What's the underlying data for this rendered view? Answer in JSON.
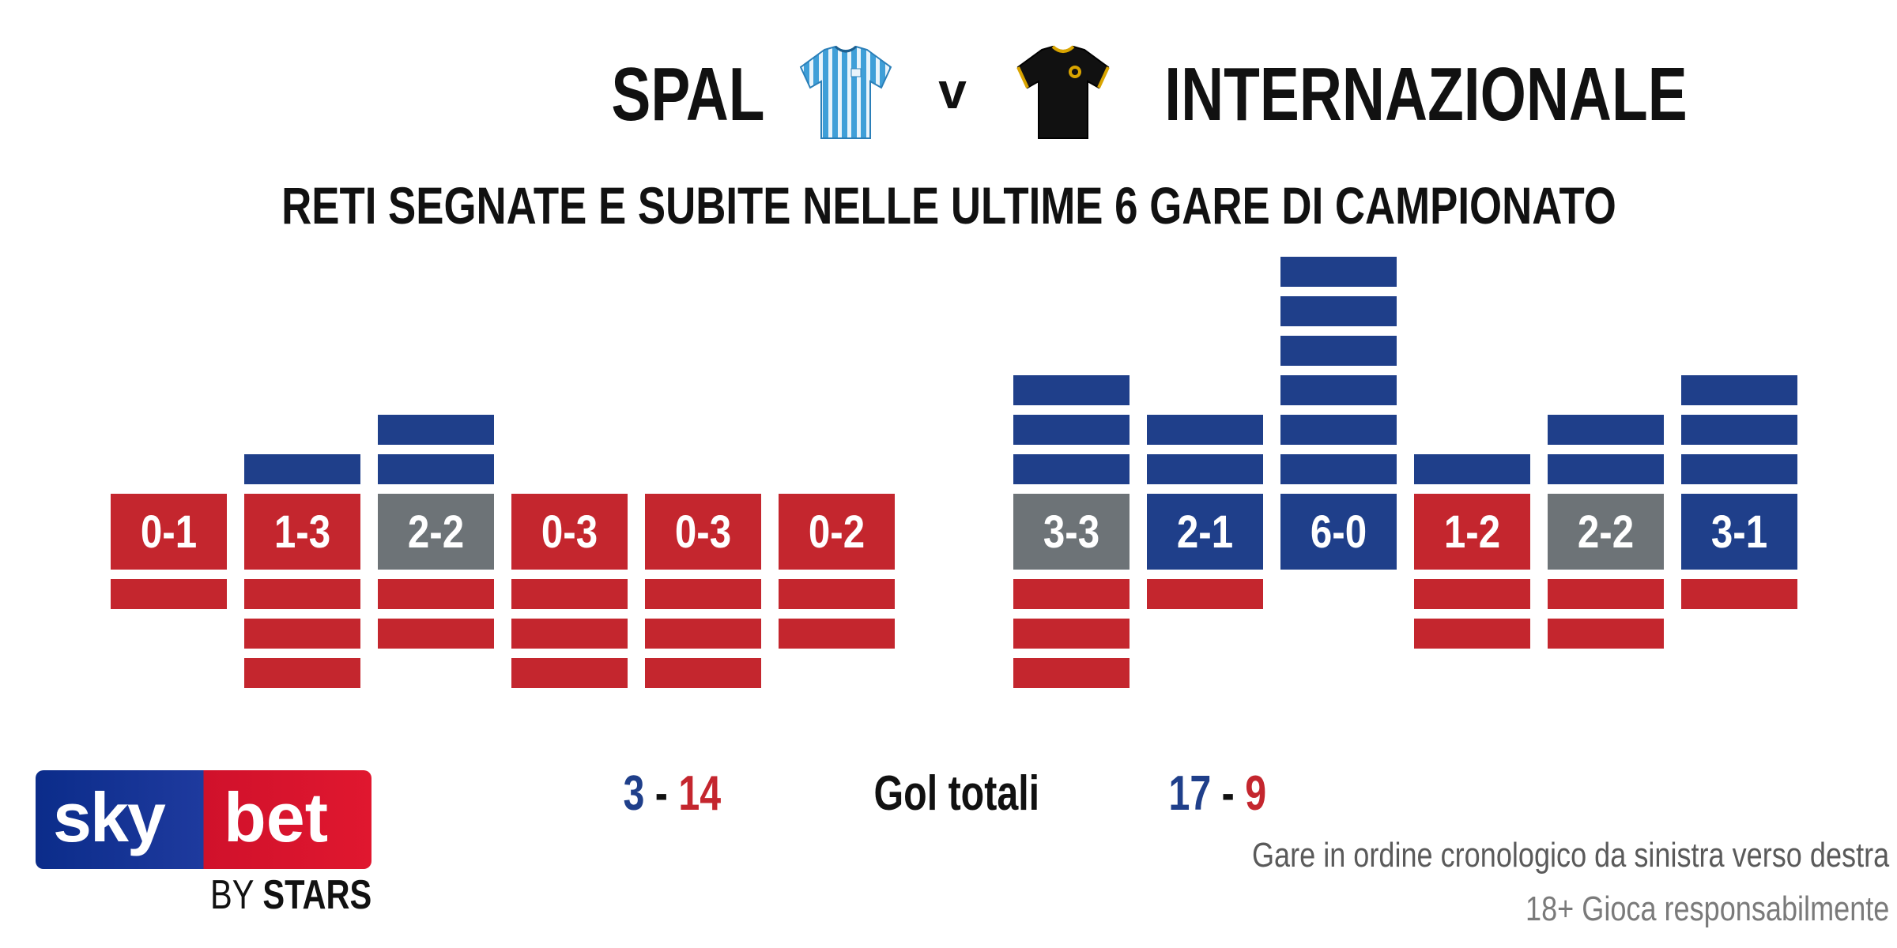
{
  "header": {
    "home_team": "SPAL",
    "vs": "v",
    "away_team": "INTERNAZIONALE",
    "home_kit_icon": "striped-light-blue-shirt-icon",
    "away_kit_icon": "black-shirt-icon"
  },
  "colors": {
    "scored": "#1f3f8a",
    "conceded": "#c4262e",
    "draw": "#6d7377",
    "text": "#111111"
  },
  "chart_data": {
    "type": "bar",
    "title": "RETI SEGNATE E SUBITE NELLE ULTIME 6 GARE DI CAMPIONATO",
    "note": "Gare in ordine cronologico da sinistra verso destra",
    "teams": [
      {
        "name": "SPAL",
        "matches": [
          {
            "score": "0-1",
            "scored": 0,
            "conceded": 1,
            "result": "loss"
          },
          {
            "score": "1-3",
            "scored": 1,
            "conceded": 3,
            "result": "loss"
          },
          {
            "score": "2-2",
            "scored": 2,
            "conceded": 2,
            "result": "draw"
          },
          {
            "score": "0-3",
            "scored": 0,
            "conceded": 3,
            "result": "loss"
          },
          {
            "score": "0-3",
            "scored": 0,
            "conceded": 3,
            "result": "loss"
          },
          {
            "score": "0-2",
            "scored": 0,
            "conceded": 2,
            "result": "loss"
          }
        ],
        "totals": {
          "scored": "3",
          "conceded": "14"
        }
      },
      {
        "name": "INTERNAZIONALE",
        "matches": [
          {
            "score": "3-3",
            "scored": 3,
            "conceded": 3,
            "result": "draw"
          },
          {
            "score": "2-1",
            "scored": 2,
            "conceded": 1,
            "result": "win"
          },
          {
            "score": "6-0",
            "scored": 6,
            "conceded": 0,
            "result": "win"
          },
          {
            "score": "1-2",
            "scored": 1,
            "conceded": 2,
            "result": "loss"
          },
          {
            "score": "2-2",
            "scored": 2,
            "conceded": 2,
            "result": "draw"
          },
          {
            "score": "3-1",
            "scored": 3,
            "conceded": 1,
            "result": "win"
          }
        ],
        "totals": {
          "scored": "17",
          "conceded": "9"
        }
      }
    ]
  },
  "totals": {
    "label": "Gol totali",
    "separator": "-"
  },
  "footer": {
    "responsible": "18+ Gioca responsabilmente"
  },
  "logo": {
    "sky": "sky",
    "bet": "bet",
    "by": "BY",
    "stars": "STARS"
  }
}
